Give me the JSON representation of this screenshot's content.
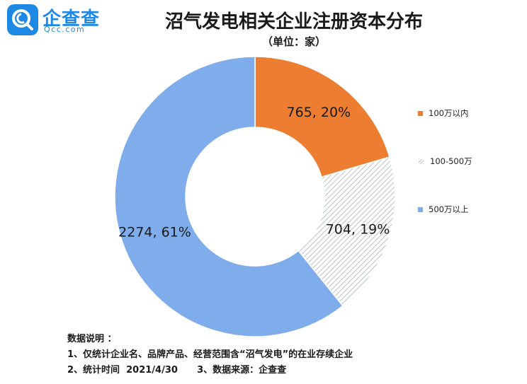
{
  "brand": {
    "logo_text": "企查查",
    "logo_sub": "Qcc.com",
    "color": "#1e88e5"
  },
  "header": {
    "title": "沼气发电相关企业注册资本分布",
    "unit": "（单位：家）"
  },
  "legend": [
    {
      "label": "100万以内",
      "color": "#ed7d31",
      "pattern": "solid"
    },
    {
      "label": "100-500万",
      "color": "#b9c2c7",
      "pattern": "hatch"
    },
    {
      "label": "500万以上",
      "color": "#7fadeb",
      "pattern": "solid"
    }
  ],
  "chart_data": {
    "type": "pie",
    "donut": true,
    "start_angle_deg": 0,
    "direction": "clockwise",
    "categories": [
      "100万以内",
      "100-500万",
      "500万以上"
    ],
    "values": [
      765,
      704,
      2274
    ],
    "percents": [
      20,
      19,
      61
    ],
    "data_labels": [
      "765, 20%",
      "704, 19%",
      "2274, 61%"
    ],
    "colors": [
      "#ed7d31",
      "#b9c2c7",
      "#7fadeb"
    ],
    "patterns": [
      "solid",
      "hatch",
      "solid"
    ],
    "legend_position": "right"
  },
  "notes": {
    "heading": "数据说明 ：",
    "line1": "1、仅统计企业名、品牌产品、经营范围含“沼气发电”的在业存续企业",
    "line2": "2、统计时间  2021/4/30      3、数据来源：企查查"
  }
}
